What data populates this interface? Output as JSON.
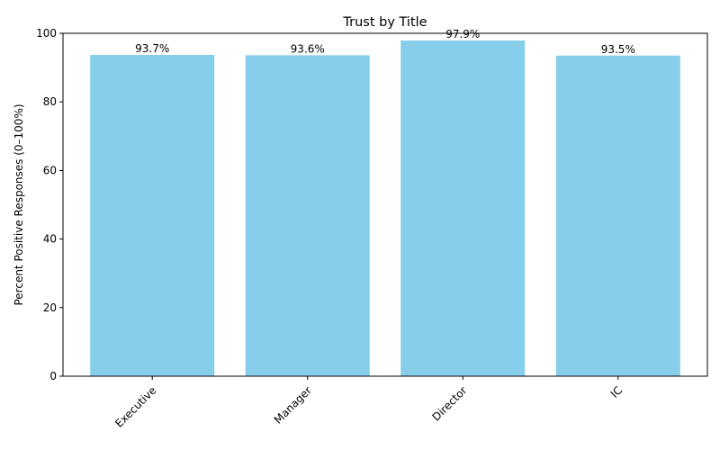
{
  "chart_data": {
    "type": "bar",
    "title": "Trust by Title",
    "xlabel": "",
    "ylabel": "Percent Positive Responses (0–100%)",
    "categories": [
      "Executive",
      "Manager",
      "Director",
      "IC"
    ],
    "values": [
      93.7,
      93.6,
      97.9,
      93.5
    ],
    "data_labels": [
      "93.7%",
      "93.6%",
      "97.9%",
      "93.5%"
    ],
    "ylim": [
      0,
      100
    ],
    "yticks": [
      0,
      20,
      40,
      60,
      80,
      100
    ],
    "grid": false,
    "legend": "none",
    "bar_color": "#87CEEB",
    "x_tick_rotation_deg": 45
  }
}
